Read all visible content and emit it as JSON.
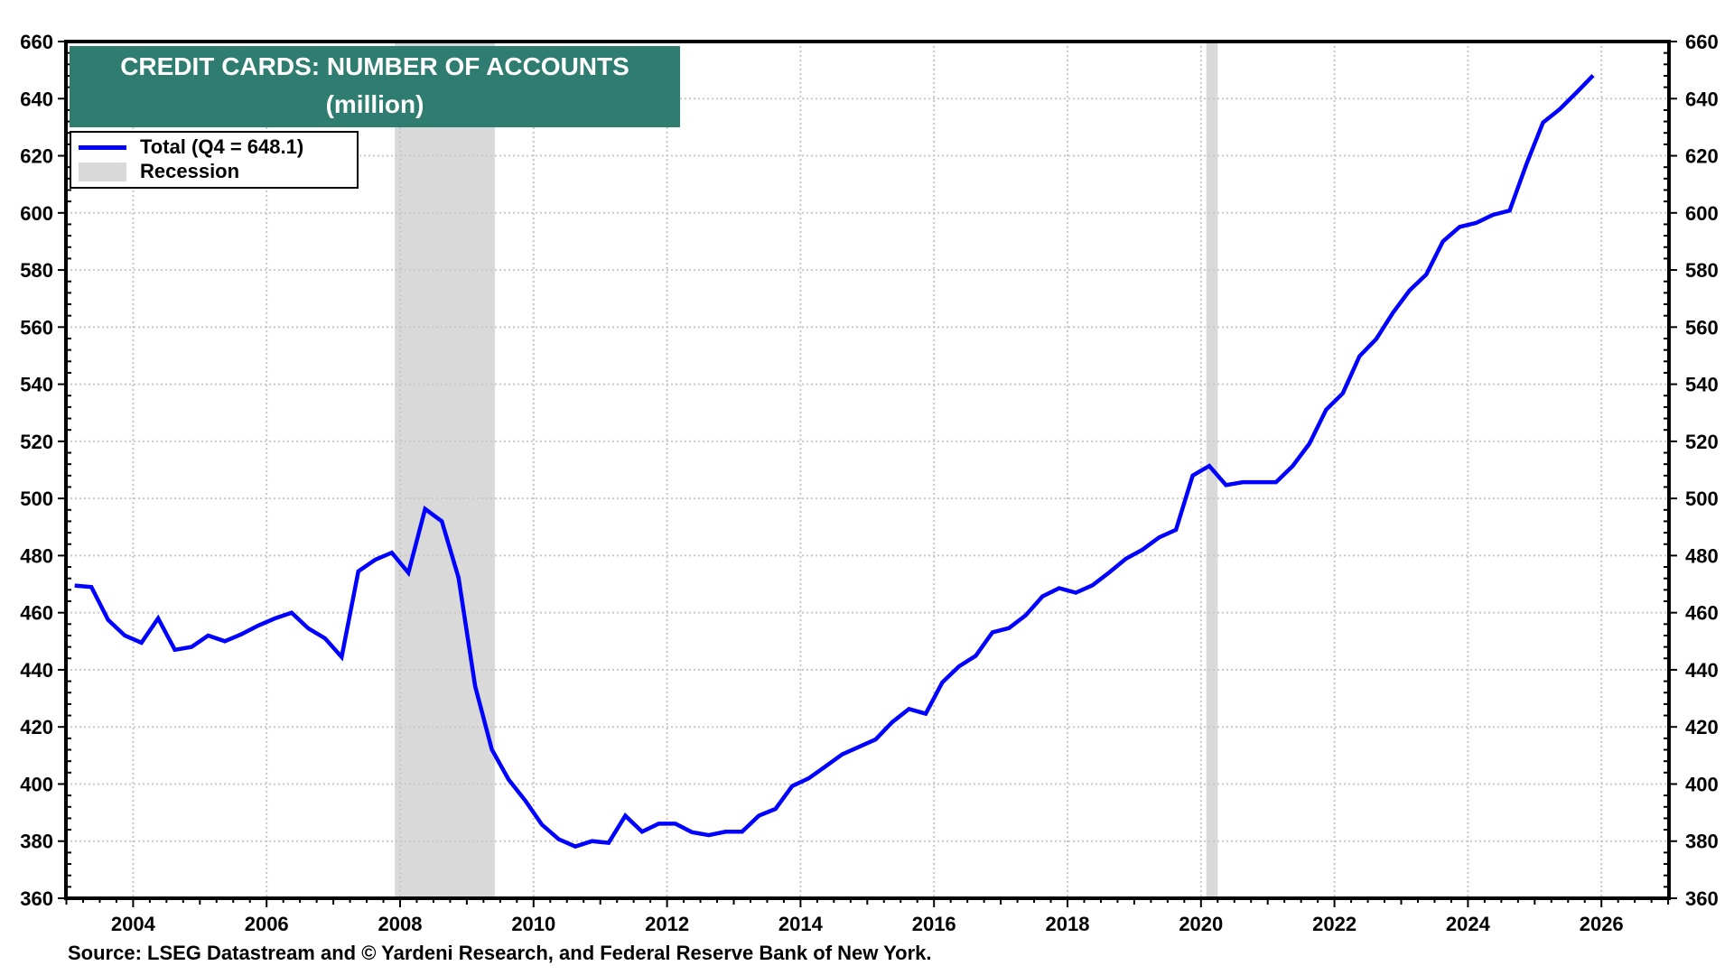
{
  "title": {
    "line1": "CREDIT CARDS: NUMBER OF ACCOUNTS",
    "line2": "(million)"
  },
  "legend": {
    "series_label": "Total (Q4  = 648.1)",
    "recession_label": "Recession"
  },
  "footer": {
    "source": "Source: LSEG Datastream and © Yardeni Research, and Federal Reserve Bank of New York."
  },
  "colors": {
    "line": "#0000ff",
    "recession": "#d9d9d9",
    "title_bg": "#2f7d70",
    "grid": "#c8c8c8",
    "axis": "#000000"
  },
  "chart_data": {
    "type": "line",
    "title": "CREDIT CARDS: NUMBER OF ACCOUNTS",
    "subtitle": "(million)",
    "xlabel": "",
    "ylabel": "",
    "xlim": [
      2003.0,
      2027.0
    ],
    "ylim": [
      360,
      660
    ],
    "x_ticks": [
      2004,
      2006,
      2008,
      2010,
      2012,
      2014,
      2016,
      2018,
      2020,
      2022,
      2024,
      2026
    ],
    "y_ticks": [
      360,
      380,
      400,
      420,
      440,
      460,
      480,
      500,
      520,
      540,
      560,
      580,
      600,
      620,
      640,
      660
    ],
    "grid": true,
    "dual_y_axis": true,
    "legend_position": "top-left",
    "frequency": "quarterly",
    "start": "2003Q1",
    "end": "2025Q4",
    "recessions": [
      {
        "start": 2007.92,
        "end": 2009.42,
        "label": "Recession"
      },
      {
        "start": 2020.08,
        "end": 2020.25,
        "label": "Recession"
      }
    ],
    "series": [
      {
        "name": "Total",
        "last_label": "Q4 = 648.1",
        "x": [
          2003.125,
          2003.375,
          2003.625,
          2003.875,
          2004.125,
          2004.375,
          2004.625,
          2004.875,
          2005.125,
          2005.375,
          2005.625,
          2005.875,
          2006.125,
          2006.375,
          2006.625,
          2006.875,
          2007.125,
          2007.375,
          2007.625,
          2007.875,
          2008.125,
          2008.375,
          2008.625,
          2008.875,
          2009.125,
          2009.375,
          2009.625,
          2009.875,
          2010.125,
          2010.375,
          2010.625,
          2010.875,
          2011.125,
          2011.375,
          2011.625,
          2011.875,
          2012.125,
          2012.375,
          2012.625,
          2012.875,
          2013.125,
          2013.375,
          2013.625,
          2013.875,
          2014.125,
          2014.375,
          2014.625,
          2014.875,
          2015.125,
          2015.375,
          2015.625,
          2015.875,
          2016.125,
          2016.375,
          2016.625,
          2016.875,
          2017.125,
          2017.375,
          2017.625,
          2017.875,
          2018.125,
          2018.375,
          2018.625,
          2018.875,
          2019.125,
          2019.375,
          2019.625,
          2019.875,
          2020.125,
          2020.375,
          2020.625,
          2020.875,
          2021.125,
          2021.375,
          2021.625,
          2021.875,
          2022.125,
          2022.375,
          2022.625,
          2022.875,
          2023.125,
          2023.375,
          2023.625,
          2023.875,
          2024.125,
          2024.375,
          2024.625,
          2024.875,
          2025.125,
          2025.375,
          2025.625,
          2025.875
        ],
        "values": [
          469.5,
          469.0,
          457.5,
          452.0,
          449.5,
          458.0,
          447.0,
          448.0,
          452.0,
          450.0,
          452.5,
          455.5,
          458.0,
          460.0,
          454.5,
          451.0,
          444.5,
          474.5,
          478.5,
          481.0,
          474.0,
          496.3,
          492.0,
          472.3,
          434.3,
          412.1,
          401.6,
          394.2,
          385.8,
          380.7,
          378.1,
          380.0,
          379.4,
          388.9,
          383.3,
          386.1,
          386.1,
          383.1,
          382.1,
          383.3,
          383.3,
          388.9,
          391.3,
          399.3,
          402.0,
          406.2,
          410.4,
          413.0,
          415.6,
          421.7,
          426.3,
          424.6,
          435.6,
          441.2,
          444.9,
          453.1,
          454.6,
          459.1,
          465.7,
          468.6,
          467.0,
          469.6,
          474.1,
          478.9,
          482.1,
          486.4,
          489.0,
          508.0,
          511.4,
          504.7,
          505.7,
          505.7,
          505.7,
          511.4,
          519.2,
          531.1,
          536.8,
          549.8,
          555.8,
          565.0,
          572.8,
          578.4,
          590.0,
          595.1,
          596.5,
          599.3,
          600.8,
          617.0,
          631.6,
          636.3,
          642.1,
          648.1
        ]
      }
    ]
  }
}
